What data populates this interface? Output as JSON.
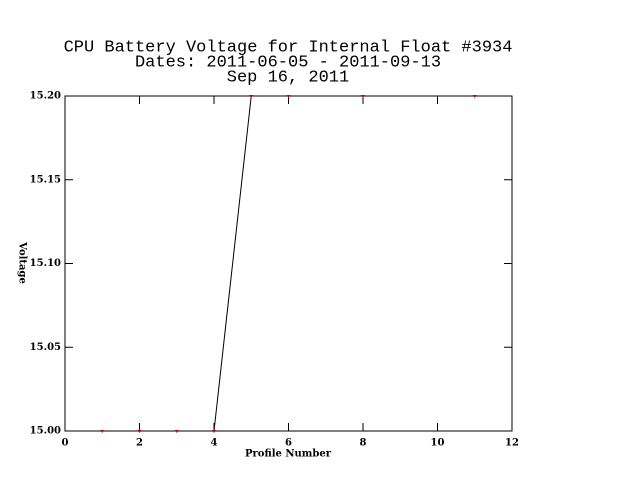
{
  "chart_data": {
    "type": "line",
    "title": [
      "CPU Battery Voltage for Internal Float #3934",
      "Dates:  2011-06-05 -  2011-09-13",
      "Sep 16, 2011"
    ],
    "xlabel": "Profile Number",
    "ylabel": "Voltage",
    "x": [
      1,
      2,
      3,
      4,
      5,
      6,
      8,
      11
    ],
    "series": [
      {
        "color": "#000000",
        "marker_color": "#cc0000",
        "values": [
          15.0,
          15.0,
          15.0,
          15.0,
          15.2,
          15.2,
          15.2,
          15.2
        ]
      }
    ],
    "xlim": [
      0,
      12
    ],
    "xticks": [
      0,
      2,
      4,
      6,
      8,
      10,
      12
    ],
    "ylim": [
      15.0,
      15.2
    ],
    "yticks": [
      {
        "value": 15.0,
        "label": "15.00"
      },
      {
        "value": 15.05,
        "label": "15.05"
      },
      {
        "value": 15.1,
        "label": "15.10"
      },
      {
        "value": 15.15,
        "label": "15.15"
      },
      {
        "value": 15.2,
        "label": "15.20"
      }
    ],
    "grid": false
  }
}
